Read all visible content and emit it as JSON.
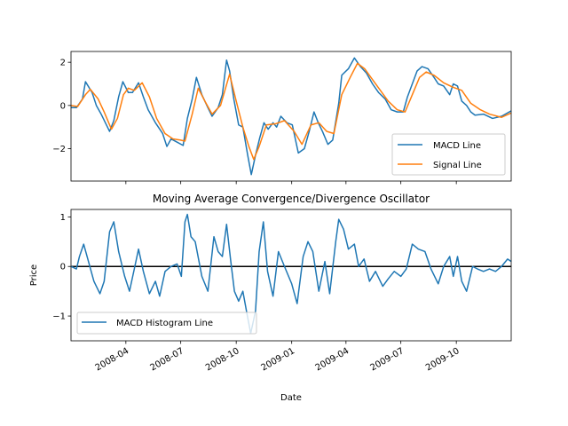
{
  "chart_data": [
    {
      "type": "line",
      "title": "",
      "xlabel": "",
      "ylabel": "",
      "xlim": [
        "2008-01-01",
        "2009-12-31"
      ],
      "ylim": [
        -3.5,
        2.5
      ],
      "yticks": [
        -2,
        0,
        2
      ],
      "ytick_labels": [
        "−2",
        "0",
        "2"
      ],
      "grid": false,
      "legend_position": "lower right",
      "series": [
        {
          "name": "MACD Line",
          "color": "#1f77b4",
          "points": [
            [
              "2008-01-01",
              -0.1
            ],
            [
              "2008-01-10",
              -0.1
            ],
            [
              "2008-01-20",
              0.3
            ],
            [
              "2008-01-25",
              1.1
            ],
            [
              "2008-02-05",
              0.6
            ],
            [
              "2008-02-12",
              0.0
            ],
            [
              "2008-02-20",
              -0.4
            ],
            [
              "2008-03-05",
              -1.2
            ],
            [
              "2008-03-12",
              -0.7
            ],
            [
              "2008-03-20",
              0.4
            ],
            [
              "2008-03-27",
              1.1
            ],
            [
              "2008-04-05",
              0.6
            ],
            [
              "2008-04-12",
              0.6
            ],
            [
              "2008-04-22",
              1.05
            ],
            [
              "2008-04-30",
              0.4
            ],
            [
              "2008-05-08",
              -0.2
            ],
            [
              "2008-05-20",
              -0.8
            ],
            [
              "2008-06-01",
              -1.3
            ],
            [
              "2008-06-08",
              -1.9
            ],
            [
              "2008-06-15",
              -1.55
            ],
            [
              "2008-06-25",
              -1.7
            ],
            [
              "2008-07-05",
              -1.85
            ],
            [
              "2008-07-12",
              -0.6
            ],
            [
              "2008-07-20",
              0.3
            ],
            [
              "2008-07-27",
              1.3
            ],
            [
              "2008-08-05",
              0.5
            ],
            [
              "2008-08-15",
              -0.1
            ],
            [
              "2008-08-22",
              -0.5
            ],
            [
              "2008-09-01",
              -0.1
            ],
            [
              "2008-09-08",
              0.5
            ],
            [
              "2008-09-15",
              2.1
            ],
            [
              "2008-09-20",
              1.6
            ],
            [
              "2008-09-27",
              0.3
            ],
            [
              "2008-10-05",
              -0.9
            ],
            [
              "2008-10-12",
              -1.0
            ],
            [
              "2008-10-20",
              -2.3
            ],
            [
              "2008-10-26",
              -3.2
            ],
            [
              "2008-11-02",
              -2.3
            ],
            [
              "2008-11-09",
              -1.5
            ],
            [
              "2008-11-16",
              -0.8
            ],
            [
              "2008-11-23",
              -1.1
            ],
            [
              "2008-12-01",
              -0.8
            ],
            [
              "2008-12-07",
              -1.0
            ],
            [
              "2008-12-14",
              -0.5
            ],
            [
              "2008-12-24",
              -0.8
            ],
            [
              "2009-01-02",
              -0.9
            ],
            [
              "2009-01-12",
              -2.2
            ],
            [
              "2009-01-22",
              -2.0
            ],
            [
              "2009-01-30",
              -1.2
            ],
            [
              "2009-02-07",
              -0.3
            ],
            [
              "2009-02-14",
              -0.8
            ],
            [
              "2009-02-21",
              -1.2
            ],
            [
              "2009-03-02",
              -1.8
            ],
            [
              "2009-03-10",
              -1.6
            ],
            [
              "2009-03-20",
              0.1
            ],
            [
              "2009-03-25",
              1.4
            ],
            [
              "2009-04-05",
              1.7
            ],
            [
              "2009-04-15",
              2.2
            ],
            [
              "2009-04-25",
              1.8
            ],
            [
              "2009-05-05",
              1.5
            ],
            [
              "2009-05-15",
              1.0
            ],
            [
              "2009-05-25",
              0.6
            ],
            [
              "2009-06-05",
              0.3
            ],
            [
              "2009-06-15",
              -0.2
            ],
            [
              "2009-06-25",
              -0.3
            ],
            [
              "2009-07-05",
              -0.3
            ],
            [
              "2009-07-12",
              0.4
            ],
            [
              "2009-07-20",
              1.0
            ],
            [
              "2009-07-28",
              1.6
            ],
            [
              "2009-08-05",
              1.8
            ],
            [
              "2009-08-15",
              1.7
            ],
            [
              "2009-08-25",
              1.3
            ],
            [
              "2009-09-01",
              1.0
            ],
            [
              "2009-09-10",
              0.9
            ],
            [
              "2009-09-20",
              0.5
            ],
            [
              "2009-09-26",
              1.0
            ],
            [
              "2009-10-03",
              0.9
            ],
            [
              "2009-10-10",
              0.2
            ],
            [
              "2009-10-18",
              0.0
            ],
            [
              "2009-10-25",
              -0.3
            ],
            [
              "2009-11-01",
              -0.45
            ],
            [
              "2009-11-15",
              -0.4
            ],
            [
              "2009-11-30",
              -0.6
            ],
            [
              "2009-12-15",
              -0.5
            ],
            [
              "2009-12-31",
              -0.25
            ]
          ]
        },
        {
          "name": "Signal Line",
          "color": "#ff7f0e",
          "points": [
            [
              "2008-01-01",
              0.0
            ],
            [
              "2008-01-12",
              -0.05
            ],
            [
              "2008-01-25",
              0.5
            ],
            [
              "2008-02-02",
              0.75
            ],
            [
              "2008-02-15",
              0.3
            ],
            [
              "2008-02-25",
              -0.3
            ],
            [
              "2008-03-08",
              -1.1
            ],
            [
              "2008-03-18",
              -0.6
            ],
            [
              "2008-03-28",
              0.5
            ],
            [
              "2008-04-05",
              0.8
            ],
            [
              "2008-04-15",
              0.7
            ],
            [
              "2008-04-28",
              1.05
            ],
            [
              "2008-05-10",
              0.4
            ],
            [
              "2008-05-22",
              -0.6
            ],
            [
              "2008-06-05",
              -1.3
            ],
            [
              "2008-06-18",
              -1.55
            ],
            [
              "2008-06-30",
              -1.6
            ],
            [
              "2008-07-08",
              -1.65
            ],
            [
              "2008-07-20",
              -0.4
            ],
            [
              "2008-07-30",
              0.8
            ],
            [
              "2008-08-10",
              0.2
            ],
            [
              "2008-08-22",
              -0.4
            ],
            [
              "2008-09-05",
              0.0
            ],
            [
              "2008-09-20",
              1.45
            ],
            [
              "2008-10-01",
              0.2
            ],
            [
              "2008-10-12",
              -1.0
            ],
            [
              "2008-10-22",
              -1.9
            ],
            [
              "2008-10-30",
              -2.5
            ],
            [
              "2008-11-08",
              -1.9
            ],
            [
              "2008-11-20",
              -0.9
            ],
            [
              "2008-12-05",
              -0.85
            ],
            [
              "2008-12-20",
              -0.7
            ],
            [
              "2009-01-05",
              -1.2
            ],
            [
              "2009-01-18",
              -1.8
            ],
            [
              "2009-02-02",
              -0.9
            ],
            [
              "2009-02-15",
              -0.8
            ],
            [
              "2009-02-28",
              -1.2
            ],
            [
              "2009-03-12",
              -1.3
            ],
            [
              "2009-03-25",
              0.5
            ],
            [
              "2009-04-08",
              1.3
            ],
            [
              "2009-04-20",
              1.95
            ],
            [
              "2009-05-02",
              1.7
            ],
            [
              "2009-05-15",
              1.2
            ],
            [
              "2009-05-28",
              0.7
            ],
            [
              "2009-06-10",
              0.2
            ],
            [
              "2009-06-25",
              -0.2
            ],
            [
              "2009-07-08",
              -0.3
            ],
            [
              "2009-07-20",
              0.5
            ],
            [
              "2009-08-01",
              1.3
            ],
            [
              "2009-08-12",
              1.55
            ],
            [
              "2009-08-25",
              1.4
            ],
            [
              "2009-09-10",
              1.05
            ],
            [
              "2009-09-25",
              0.85
            ],
            [
              "2009-10-10",
              0.7
            ],
            [
              "2009-10-25",
              0.1
            ],
            [
              "2009-11-10",
              -0.2
            ],
            [
              "2009-11-25",
              -0.4
            ],
            [
              "2009-12-15",
              -0.55
            ],
            [
              "2009-12-31",
              -0.35
            ]
          ]
        }
      ]
    },
    {
      "type": "line",
      "title": "Moving Average Convergence/Divergence Oscillator",
      "xlabel": "Date",
      "ylabel": "Price",
      "xlim": [
        "2008-01-01",
        "2009-12-31"
      ],
      "ylim": [
        -1.5,
        1.15
      ],
      "yticks": [
        -1,
        0,
        1
      ],
      "ytick_labels": [
        "−1",
        "0",
        "1"
      ],
      "xticks": [
        "2008-04-01",
        "2008-07-01",
        "2008-10-01",
        "2009-01-01",
        "2009-04-01",
        "2009-07-01",
        "2009-10-01"
      ],
      "xtick_labels": [
        "2008-04",
        "2008-07",
        "2008-10",
        "2009-01",
        "2009-04",
        "2009-07",
        "2009-10"
      ],
      "grid": false,
      "legend_position": "lower left",
      "reference_line": {
        "y": 0,
        "color": "#000000"
      },
      "series": [
        {
          "name": "MACD Histogram Line",
          "color": "#1f77b4",
          "points": [
            [
              "2008-01-01",
              0.0
            ],
            [
              "2008-01-10",
              -0.05
            ],
            [
              "2008-01-15",
              0.2
            ],
            [
              "2008-01-22",
              0.45
            ],
            [
              "2008-01-30",
              0.1
            ],
            [
              "2008-02-08",
              -0.3
            ],
            [
              "2008-02-18",
              -0.55
            ],
            [
              "2008-02-25",
              -0.3
            ],
            [
              "2008-03-05",
              0.7
            ],
            [
              "2008-03-12",
              0.9
            ],
            [
              "2008-03-20",
              0.3
            ],
            [
              "2008-03-30",
              -0.2
            ],
            [
              "2008-04-07",
              -0.5
            ],
            [
              "2008-04-15",
              -0.05
            ],
            [
              "2008-04-22",
              0.35
            ],
            [
              "2008-04-30",
              -0.1
            ],
            [
              "2008-05-10",
              -0.55
            ],
            [
              "2008-05-20",
              -0.3
            ],
            [
              "2008-05-27",
              -0.6
            ],
            [
              "2008-06-05",
              -0.1
            ],
            [
              "2008-06-15",
              0.0
            ],
            [
              "2008-06-25",
              0.05
            ],
            [
              "2008-07-02",
              -0.2
            ],
            [
              "2008-07-08",
              0.9
            ],
            [
              "2008-07-12",
              1.05
            ],
            [
              "2008-07-18",
              0.6
            ],
            [
              "2008-07-25",
              0.5
            ],
            [
              "2008-08-05",
              -0.2
            ],
            [
              "2008-08-15",
              -0.5
            ],
            [
              "2008-08-25",
              0.6
            ],
            [
              "2008-09-01",
              0.3
            ],
            [
              "2008-09-08",
              0.2
            ],
            [
              "2008-09-15",
              0.85
            ],
            [
              "2008-09-22",
              0.1
            ],
            [
              "2008-09-28",
              -0.5
            ],
            [
              "2008-10-05",
              -0.7
            ],
            [
              "2008-10-12",
              -0.5
            ],
            [
              "2008-10-18",
              -0.9
            ],
            [
              "2008-10-25",
              -1.35
            ],
            [
              "2008-11-02",
              -0.9
            ],
            [
              "2008-11-08",
              0.3
            ],
            [
              "2008-11-15",
              0.9
            ],
            [
              "2008-11-22",
              -0.1
            ],
            [
              "2008-12-01",
              -0.6
            ],
            [
              "2008-12-10",
              0.3
            ],
            [
              "2008-12-20",
              0.0
            ],
            [
              "2009-01-01",
              -0.35
            ],
            [
              "2009-01-10",
              -0.75
            ],
            [
              "2009-01-20",
              0.2
            ],
            [
              "2009-01-28",
              0.5
            ],
            [
              "2009-02-05",
              0.3
            ],
            [
              "2009-02-15",
              -0.5
            ],
            [
              "2009-02-25",
              0.1
            ],
            [
              "2009-03-05",
              -0.55
            ],
            [
              "2009-03-15",
              0.5
            ],
            [
              "2009-03-20",
              0.95
            ],
            [
              "2009-03-28",
              0.75
            ],
            [
              "2009-04-05",
              0.35
            ],
            [
              "2009-04-15",
              0.45
            ],
            [
              "2009-04-22",
              0.0
            ],
            [
              "2009-05-01",
              0.15
            ],
            [
              "2009-05-10",
              -0.3
            ],
            [
              "2009-05-20",
              -0.1
            ],
            [
              "2009-06-01",
              -0.4
            ],
            [
              "2009-06-10",
              -0.25
            ],
            [
              "2009-06-20",
              -0.1
            ],
            [
              "2009-07-01",
              -0.2
            ],
            [
              "2009-07-10",
              -0.05
            ],
            [
              "2009-07-20",
              0.45
            ],
            [
              "2009-07-30",
              0.35
            ],
            [
              "2009-08-10",
              0.3
            ],
            [
              "2009-08-20",
              -0.05
            ],
            [
              "2009-09-01",
              -0.35
            ],
            [
              "2009-09-10",
              0.0
            ],
            [
              "2009-09-20",
              0.2
            ],
            [
              "2009-09-26",
              -0.2
            ],
            [
              "2009-10-03",
              0.2
            ],
            [
              "2009-10-10",
              -0.3
            ],
            [
              "2009-10-18",
              -0.5
            ],
            [
              "2009-10-28",
              0.0
            ],
            [
              "2009-11-05",
              -0.05
            ],
            [
              "2009-11-15",
              -0.1
            ],
            [
              "2009-11-25",
              -0.05
            ],
            [
              "2009-12-05",
              -0.1
            ],
            [
              "2009-12-15",
              0.0
            ],
            [
              "2009-12-25",
              0.15
            ],
            [
              "2009-12-31",
              0.1
            ]
          ]
        }
      ]
    }
  ]
}
